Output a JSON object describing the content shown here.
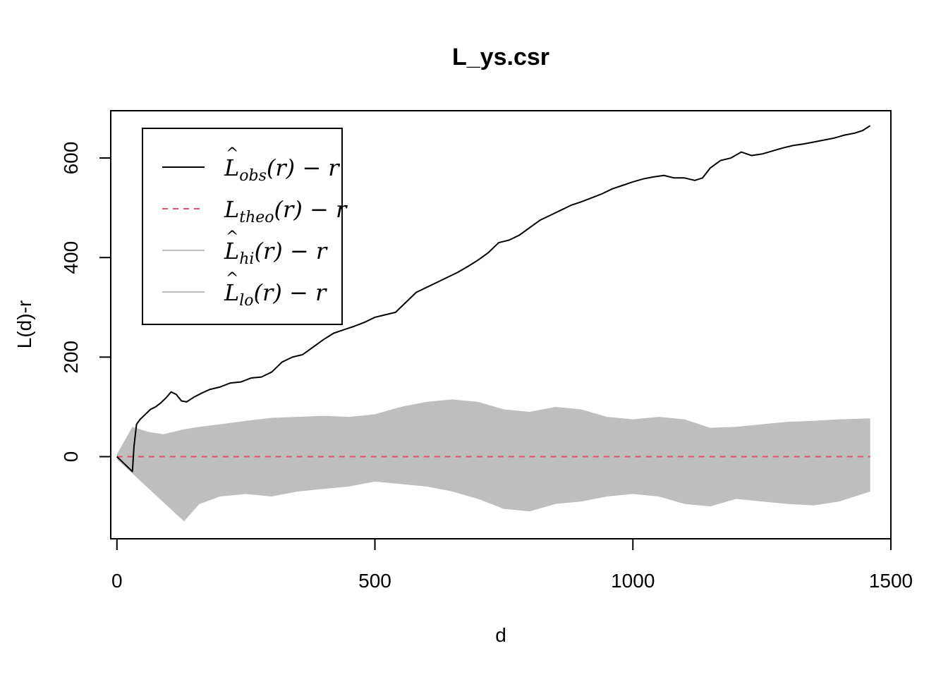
{
  "chart_data": {
    "type": "line",
    "title": "L_ys.csr",
    "xlabel": "d",
    "ylabel": "L(d)-r",
    "xlim": [
      -12,
      1500
    ],
    "ylim": [
      -165,
      695
    ],
    "x_ticks": [
      0,
      500,
      1000,
      1500
    ],
    "y_ticks": [
      0,
      200,
      400,
      600
    ],
    "x_tick_labels": [
      "0",
      "500",
      "1000",
      "1500"
    ],
    "y_tick_labels": [
      "0",
      "200",
      "400",
      "600"
    ],
    "grid": false,
    "legend_position": "top-left",
    "legend": [
      {
        "main": "L",
        "hat": true,
        "sub": "obs",
        "tail": "(r) − r",
        "color": "#000000",
        "dash": "solid"
      },
      {
        "main": "L",
        "hat": false,
        "sub": "theo",
        "tail": "(r) − r",
        "color": "#DF536B",
        "dash": "dashed"
      },
      {
        "main": "L",
        "hat": true,
        "sub": "hi",
        "tail": "(r) − r",
        "color": "#BEBEBE",
        "dash": "solid"
      },
      {
        "main": "L",
        "hat": true,
        "sub": "lo",
        "tail": "(r) − r",
        "color": "#BEBEBE",
        "dash": "solid"
      }
    ],
    "series": [
      {
        "name": "obs",
        "color": "#000000",
        "x": [
          0,
          30,
          33,
          38,
          45,
          55,
          65,
          75,
          85,
          95,
          105,
          115,
          125,
          135,
          150,
          165,
          180,
          200,
          220,
          240,
          260,
          280,
          300,
          320,
          340,
          360,
          380,
          400,
          420,
          440,
          460,
          480,
          500,
          520,
          540,
          560,
          580,
          600,
          620,
          640,
          660,
          680,
          700,
          720,
          740,
          760,
          780,
          800,
          820,
          840,
          860,
          880,
          900,
          920,
          940,
          960,
          980,
          1000,
          1020,
          1040,
          1060,
          1080,
          1100,
          1120,
          1135,
          1150,
          1170,
          1190,
          1210,
          1230,
          1250,
          1270,
          1290,
          1310,
          1330,
          1350,
          1370,
          1390,
          1410,
          1430,
          1445,
          1460
        ],
        "y": [
          0,
          -30,
          20,
          65,
          75,
          85,
          95,
          100,
          108,
          118,
          130,
          125,
          112,
          110,
          120,
          128,
          135,
          140,
          148,
          150,
          158,
          160,
          170,
          190,
          200,
          205,
          220,
          235,
          248,
          255,
          262,
          270,
          280,
          285,
          290,
          310,
          330,
          340,
          350,
          360,
          370,
          382,
          395,
          410,
          430,
          435,
          445,
          460,
          475,
          485,
          495,
          505,
          512,
          520,
          528,
          538,
          545,
          552,
          558,
          562,
          565,
          560,
          560,
          555,
          560,
          580,
          595,
          600,
          612,
          605,
          608,
          614,
          620,
          625,
          628,
          632,
          636,
          640,
          646,
          650,
          655,
          665
        ]
      },
      {
        "name": "theo",
        "color": "#DF536B",
        "x": [
          0,
          1460
        ],
        "y": [
          0,
          0
        ]
      },
      {
        "name": "hi",
        "color": "#BEBEBE",
        "x": [
          0,
          30,
          60,
          90,
          130,
          160,
          200,
          250,
          300,
          350,
          400,
          450,
          500,
          550,
          600,
          650,
          700,
          750,
          800,
          850,
          900,
          950,
          1000,
          1050,
          1100,
          1150,
          1200,
          1250,
          1300,
          1350,
          1400,
          1460
        ],
        "y": [
          5,
          60,
          50,
          45,
          55,
          60,
          65,
          72,
          78,
          80,
          82,
          80,
          85,
          100,
          110,
          115,
          110,
          95,
          90,
          100,
          95,
          80,
          75,
          80,
          75,
          58,
          60,
          65,
          70,
          72,
          75,
          77
        ]
      },
      {
        "name": "lo",
        "color": "#BEBEBE",
        "x": [
          0,
          130,
          160,
          200,
          250,
          300,
          350,
          400,
          450,
          500,
          550,
          600,
          650,
          700,
          750,
          800,
          850,
          900,
          950,
          1000,
          1050,
          1100,
          1150,
          1200,
          1250,
          1300,
          1350,
          1400,
          1460
        ],
        "y": [
          -5,
          -130,
          -95,
          -80,
          -75,
          -80,
          -70,
          -65,
          -60,
          -50,
          -55,
          -60,
          -70,
          -85,
          -105,
          -110,
          -95,
          -90,
          -80,
          -75,
          -80,
          -95,
          -100,
          -85,
          -90,
          -95,
          -98,
          -90,
          -70
        ]
      }
    ]
  }
}
